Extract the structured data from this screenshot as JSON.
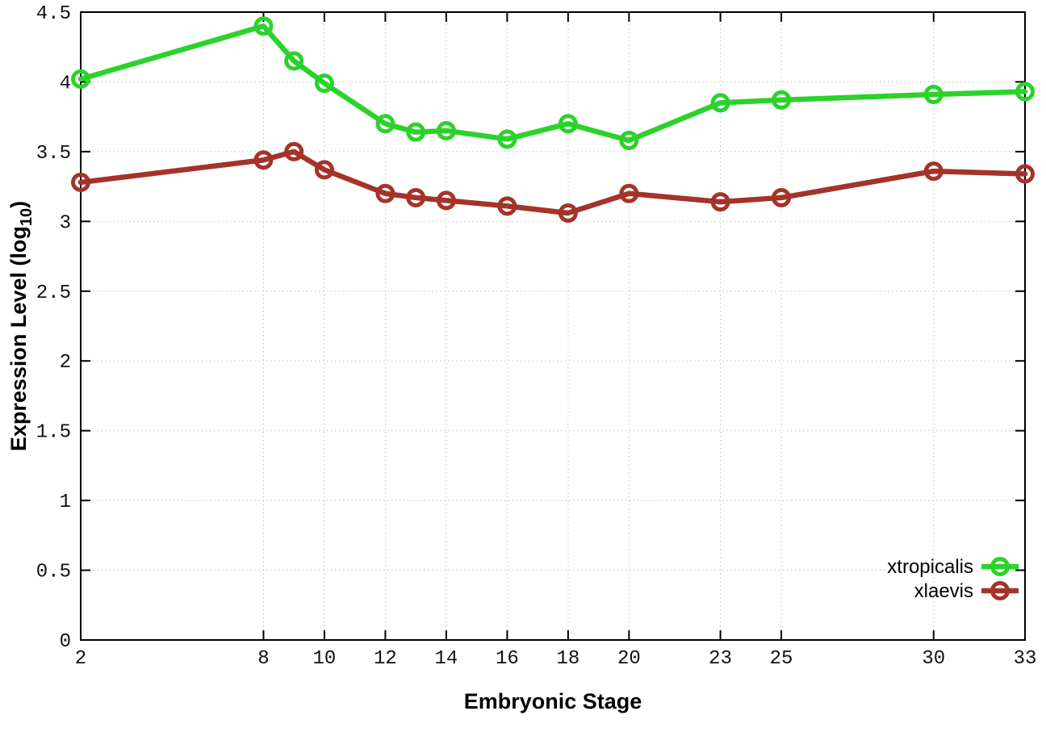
{
  "chart_data": {
    "type": "line",
    "title": "",
    "xlabel": "Embryonic Stage",
    "ylabel": {
      "prefix": "Expression Level (log",
      "sub": "10",
      "suffix": ")"
    },
    "xlim": [
      2,
      33
    ],
    "ylim": [
      0,
      4.5
    ],
    "grid": true,
    "legend_position": "bottom-right-inside",
    "x": [
      2,
      8,
      9,
      10,
      12,
      13,
      14,
      16,
      18,
      20,
      23,
      25,
      30,
      33
    ],
    "xticks": {
      "values": [
        2,
        8,
        10,
        12,
        14,
        16,
        18,
        20,
        23,
        25,
        30,
        33
      ],
      "labels": [
        "2",
        "8",
        "10",
        "12",
        "14",
        "16",
        "18",
        "20",
        "23",
        "25",
        "30",
        "33"
      ]
    },
    "yticks": {
      "values": [
        0,
        0.5,
        1,
        1.5,
        2,
        2.5,
        3,
        3.5,
        4,
        4.5
      ],
      "labels": [
        "0",
        "0.5",
        "1",
        "1.5",
        "2",
        "2.5",
        "3",
        "3.5",
        "4",
        "4.5"
      ]
    },
    "series": [
      {
        "name": "xtropicalis",
        "color": "#2bd22b",
        "marker": "open-circle",
        "values": [
          4.02,
          4.4,
          4.15,
          3.99,
          3.7,
          3.64,
          3.65,
          3.59,
          3.7,
          3.58,
          3.85,
          3.87,
          3.91,
          3.93
        ]
      },
      {
        "name": "xlaevis",
        "color": "#a4332a",
        "marker": "open-circle",
        "values": [
          3.28,
          3.44,
          3.5,
          3.37,
          3.2,
          3.17,
          3.15,
          3.11,
          3.06,
          3.2,
          3.14,
          3.17,
          3.36,
          3.34
        ]
      }
    ],
    "style": {
      "grid_color": "#c0c0c0",
      "axis_color": "#000000",
      "tick_label_color": "#111111"
    }
  }
}
